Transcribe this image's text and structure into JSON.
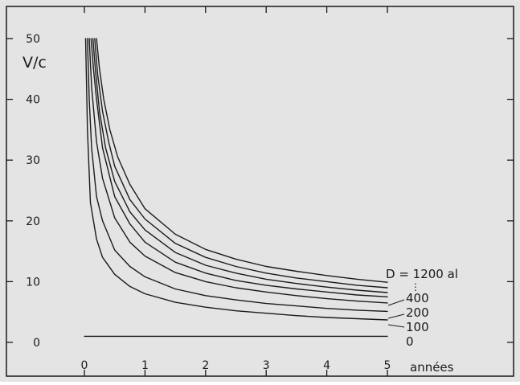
{
  "chart_data": {
    "type": "line",
    "title": "",
    "ylabel": "V/c",
    "xlabel": "années",
    "xlim": [
      0,
      5
    ],
    "ylim": [
      0,
      50
    ],
    "x_ticks": [
      "0",
      "1",
      "2",
      "3",
      "4",
      "5"
    ],
    "y_ticks": [
      "0",
      "10",
      "20",
      "30",
      "40",
      "50"
    ],
    "grid": false,
    "background": "#e4e4e4",
    "line_color": "#1a1a1a",
    "legend_labels": [
      "D = 1200 al",
      "⋮",
      "400",
      "200",
      "100",
      "0"
    ],
    "series": [
      {
        "name": "0",
        "x": [
          0,
          5
        ],
        "y": [
          1,
          1
        ]
      },
      {
        "name": "100",
        "x": [
          0.02,
          0.05,
          0.1,
          0.2,
          0.3,
          0.5,
          0.75,
          1,
          1.5,
          2,
          2.5,
          3,
          3.5,
          4,
          4.5,
          5
        ],
        "y": [
          50,
          35,
          23,
          17,
          14,
          11.2,
          9.2,
          8,
          6.6,
          5.8,
          5.2,
          4.8,
          4.4,
          4.1,
          3.9,
          3.7
        ]
      },
      {
        "name": "200",
        "x": [
          0.05,
          0.08,
          0.12,
          0.2,
          0.3,
          0.5,
          0.75,
          1,
          1.5,
          2,
          2.5,
          3,
          3.5,
          4,
          4.5,
          5
        ],
        "y": [
          50,
          40,
          32,
          24,
          20,
          15.2,
          12.5,
          10.8,
          8.8,
          7.7,
          7,
          6.4,
          6,
          5.6,
          5.3,
          5.1
        ]
      },
      {
        "name": "400",
        "x": [
          0.08,
          0.12,
          0.2,
          0.3,
          0.5,
          0.75,
          1,
          1.5,
          2,
          2.5,
          3,
          3.5,
          4,
          4.5,
          5
        ],
        "y": [
          50,
          42,
          33,
          27,
          20.5,
          16.5,
          14.2,
          11.5,
          10,
          9,
          8.3,
          7.7,
          7.2,
          6.8,
          6.5
        ]
      },
      {
        "name": "",
        "x": [
          0.11,
          0.15,
          0.2,
          0.3,
          0.5,
          0.75,
          1,
          1.5,
          2,
          2.5,
          3,
          3.5,
          4,
          4.5,
          5
        ],
        "y": [
          50,
          45,
          40,
          32,
          24,
          19.5,
          16.5,
          13.2,
          11.4,
          10.2,
          9.4,
          8.8,
          8.3,
          7.8,
          7.5
        ]
      },
      {
        "name": "",
        "x": [
          0.14,
          0.18,
          0.25,
          0.35,
          0.5,
          0.75,
          1,
          1.5,
          2,
          2.5,
          3,
          3.5,
          4,
          4.5,
          5
        ],
        "y": [
          50,
          45,
          38,
          32,
          26.5,
          21.5,
          18.5,
          14.8,
          12.7,
          11.4,
          10.4,
          9.7,
          9.1,
          8.6,
          8.2
        ]
      },
      {
        "name": "",
        "x": [
          0.17,
          0.22,
          0.3,
          0.4,
          0.5,
          0.75,
          1,
          1.5,
          2,
          2.5,
          3,
          3.5,
          4,
          4.5,
          5
        ],
        "y": [
          50,
          44,
          38,
          33,
          29,
          23.5,
          20.3,
          16.3,
          14,
          12.5,
          11.4,
          10.6,
          10,
          9.4,
          9
        ]
      },
      {
        "name": "1200",
        "x": [
          0.2,
          0.25,
          0.32,
          0.42,
          0.55,
          0.75,
          1,
          1.5,
          2,
          2.5,
          3,
          3.5,
          4,
          4.5,
          5
        ],
        "y": [
          50,
          45,
          40,
          35,
          30.5,
          26,
          22,
          17.8,
          15.3,
          13.7,
          12.5,
          11.7,
          11,
          10.4,
          9.9
        ]
      }
    ]
  }
}
